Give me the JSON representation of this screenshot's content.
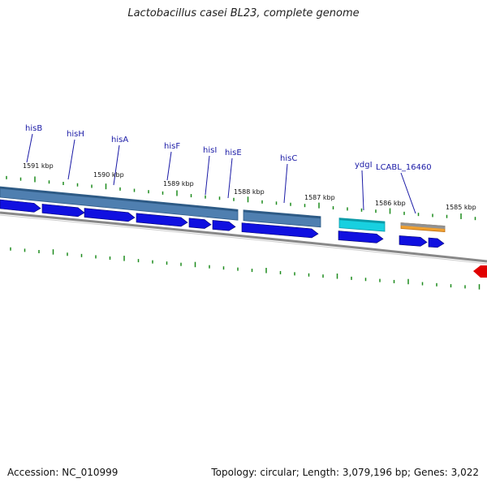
{
  "title": "Lactobacillus casei BL23, complete genome",
  "footer": {
    "accession": "Accession: NC_010999",
    "topology": "Topology: circular; Length: 3,079,196 bp; Genes: 3,022"
  },
  "colors": {
    "backbone": "#888888",
    "tick": "#1e8c1e",
    "cds_forward": "#1010e0",
    "gene_bar": "#4f7fb0",
    "trna": "#18d0e0",
    "pseudo": "#f0a030",
    "gene_label": "#1a1aa6",
    "feature_red": "#e00000"
  },
  "kbp_markers": [
    {
      "label": "1591 kbp"
    },
    {
      "label": "1590 kbp"
    },
    {
      "label": "1589 kbp"
    },
    {
      "label": "1588 kbp"
    },
    {
      "label": "1587 kbp"
    },
    {
      "label": "1586 kbp"
    },
    {
      "label": "1585 kbp"
    }
  ],
  "genes": [
    {
      "name": "hisB"
    },
    {
      "name": "hisH"
    },
    {
      "name": "hisA"
    },
    {
      "name": "hisF"
    },
    {
      "name": "hisI"
    },
    {
      "name": "hisE"
    },
    {
      "name": "hisC"
    },
    {
      "name": "ydgI"
    },
    {
      "name": "LCABL_16460"
    }
  ]
}
